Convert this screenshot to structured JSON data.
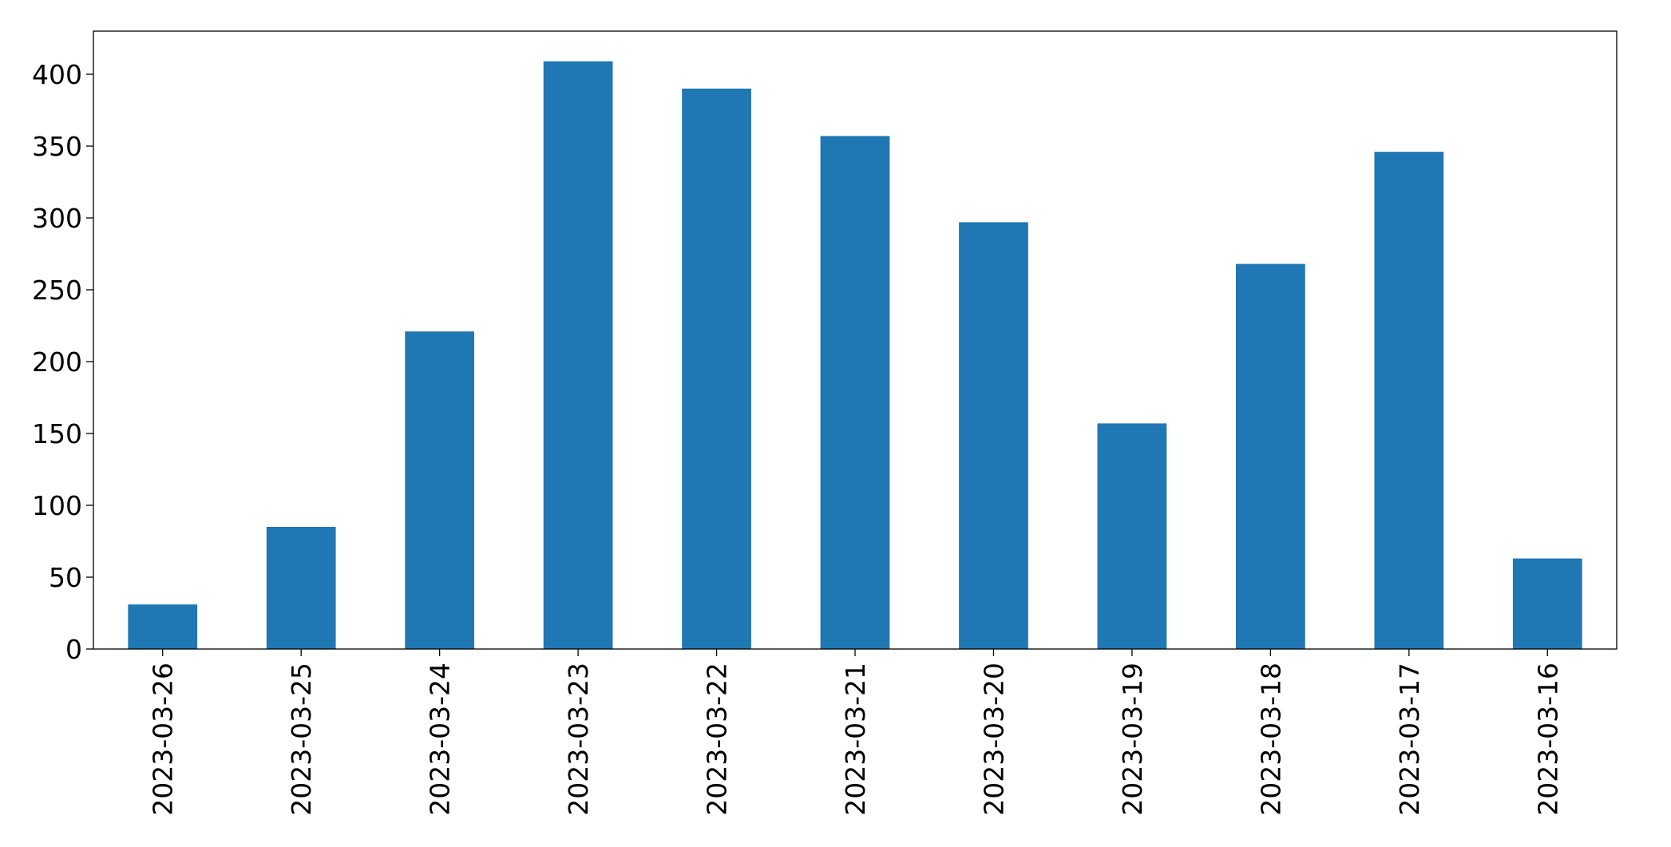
{
  "chart_data": {
    "type": "bar",
    "categories": [
      "2023-03-26",
      "2023-03-25",
      "2023-03-24",
      "2023-03-23",
      "2023-03-22",
      "2023-03-21",
      "2023-03-20",
      "2023-03-19",
      "2023-03-18",
      "2023-03-17",
      "2023-03-16"
    ],
    "values": [
      31,
      85,
      221,
      409,
      390,
      357,
      297,
      157,
      268,
      346,
      63
    ],
    "color": "#1f77b4",
    "ylim": [
      0,
      430
    ],
    "yticks": [
      0,
      50,
      100,
      150,
      200,
      250,
      300,
      350,
      400
    ],
    "grid": false
  }
}
